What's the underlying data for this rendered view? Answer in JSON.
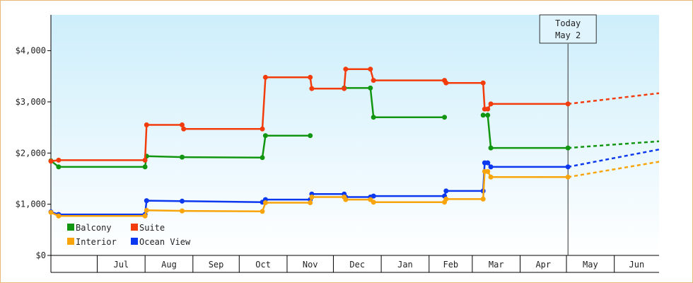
{
  "chart_data": {
    "type": "line",
    "title": "",
    "xlabel": "",
    "ylabel": "",
    "ylim": [
      0,
      4700
    ],
    "yticks": [
      0,
      1000,
      2000,
      3000,
      4000
    ],
    "ytick_labels": [
      "$0",
      "$1,000",
      "$2,000",
      "$3,000",
      "$4,000"
    ],
    "x_domain": [
      "2024-06-01",
      "2025-06-30"
    ],
    "months": [
      {
        "label": "",
        "start": "2024-06-01",
        "end": "2024-07-01"
      },
      {
        "label": "Jul",
        "start": "2024-07-01",
        "end": "2024-08-01"
      },
      {
        "label": "Aug",
        "start": "2024-08-01",
        "end": "2024-09-01"
      },
      {
        "label": "Sep",
        "start": "2024-09-01",
        "end": "2024-10-01"
      },
      {
        "label": "Oct",
        "start": "2024-10-01",
        "end": "2024-11-01"
      },
      {
        "label": "Nov",
        "start": "2024-11-01",
        "end": "2024-12-01"
      },
      {
        "label": "Dec",
        "start": "2024-12-01",
        "end": "2025-01-01"
      },
      {
        "label": "Jan",
        "start": "2025-01-01",
        "end": "2025-02-01"
      },
      {
        "label": "Feb",
        "start": "2025-02-01",
        "end": "2025-03-01"
      },
      {
        "label": "Mar",
        "start": "2025-03-01",
        "end": "2025-04-01"
      },
      {
        "label": "Apr",
        "start": "2025-04-01",
        "end": "2025-05-01"
      },
      {
        "label": "May",
        "start": "2025-05-01",
        "end": "2025-06-01"
      },
      {
        "label": "Jun",
        "start": "2025-06-01",
        "end": "2025-06-30"
      }
    ],
    "today": {
      "date": "2025-05-02",
      "line1": "Today",
      "line2": "May 2"
    },
    "legend_position": "bottom-left",
    "grid": false,
    "series": [
      {
        "name": "Balcony",
        "color": "#129612",
        "points": [
          [
            "2024-06-01",
            1850
          ],
          [
            "2024-06-06",
            1730
          ],
          [
            "2024-08-01",
            1730
          ],
          [
            "2024-08-02",
            1940
          ],
          [
            "2024-08-25",
            1920
          ],
          [
            "2024-10-16",
            1910
          ],
          [
            "2024-10-18",
            2340
          ],
          [
            "2024-11-16",
            2340
          ]
        ],
        "points2": [
          [
            "2024-12-08",
            3270
          ],
          [
            "2024-12-25",
            3270
          ],
          [
            "2024-12-27",
            2700
          ],
          [
            "2025-02-11",
            2700
          ]
        ],
        "points3": [
          [
            "2025-03-08",
            2740
          ],
          [
            "2025-03-11",
            2740
          ],
          [
            "2025-03-13",
            2100
          ],
          [
            "2025-05-02",
            2100
          ]
        ],
        "forecast": [
          [
            "2025-05-02",
            2100
          ],
          [
            "2025-06-30",
            2230
          ]
        ]
      },
      {
        "name": "Suite",
        "color": "#f23c0c",
        "points": [
          [
            "2024-06-01",
            1840
          ],
          [
            "2024-06-06",
            1860
          ],
          [
            "2024-08-01",
            1860
          ],
          [
            "2024-08-02",
            2550
          ],
          [
            "2024-08-25",
            2550
          ],
          [
            "2024-08-26",
            2470
          ],
          [
            "2024-10-16",
            2470
          ],
          [
            "2024-10-18",
            3480
          ],
          [
            "2024-11-16",
            3480
          ],
          [
            "2024-11-17",
            3260
          ],
          [
            "2024-12-08",
            3260
          ],
          [
            "2024-12-09",
            3640
          ],
          [
            "2024-12-25",
            3640
          ],
          [
            "2024-12-27",
            3420
          ],
          [
            "2025-02-11",
            3420
          ],
          [
            "2025-02-12",
            3370
          ],
          [
            "2025-03-08",
            3370
          ],
          [
            "2025-03-09",
            2860
          ],
          [
            "2025-03-11",
            2860
          ],
          [
            "2025-03-13",
            2960
          ],
          [
            "2025-05-02",
            2960
          ]
        ],
        "forecast": [
          [
            "2025-05-02",
            2960
          ],
          [
            "2025-06-30",
            3170
          ]
        ]
      },
      {
        "name": "Interior",
        "color": "#f8a40c",
        "points": [
          [
            "2024-06-01",
            840
          ],
          [
            "2024-06-06",
            770
          ],
          [
            "2024-08-01",
            770
          ],
          [
            "2024-08-02",
            880
          ],
          [
            "2024-08-25",
            870
          ],
          [
            "2024-10-16",
            860
          ],
          [
            "2024-10-18",
            1030
          ],
          [
            "2024-11-16",
            1030
          ],
          [
            "2024-11-17",
            1140
          ],
          [
            "2024-12-08",
            1140
          ],
          [
            "2024-12-09",
            1090
          ],
          [
            "2024-12-25",
            1090
          ],
          [
            "2024-12-27",
            1040
          ],
          [
            "2025-02-11",
            1040
          ],
          [
            "2025-02-12",
            1100
          ],
          [
            "2025-03-08",
            1100
          ],
          [
            "2025-03-09",
            1640
          ],
          [
            "2025-03-11",
            1640
          ],
          [
            "2025-03-13",
            1530
          ],
          [
            "2025-05-02",
            1530
          ]
        ],
        "forecast": [
          [
            "2025-05-02",
            1530
          ],
          [
            "2025-06-30",
            1830
          ]
        ]
      },
      {
        "name": "Ocean View",
        "color": "#0c38f0",
        "points": [
          [
            "2024-06-01",
            850
          ],
          [
            "2024-06-06",
            800
          ],
          [
            "2024-08-01",
            800
          ],
          [
            "2024-08-02",
            1070
          ],
          [
            "2024-08-25",
            1060
          ],
          [
            "2024-10-16",
            1040
          ],
          [
            "2024-10-18",
            1090
          ],
          [
            "2024-11-16",
            1090
          ],
          [
            "2024-11-17",
            1200
          ],
          [
            "2024-12-08",
            1200
          ],
          [
            "2024-12-09",
            1140
          ],
          [
            "2024-12-25",
            1140
          ],
          [
            "2024-12-27",
            1160
          ],
          [
            "2025-02-11",
            1160
          ],
          [
            "2025-02-12",
            1260
          ],
          [
            "2025-03-08",
            1260
          ],
          [
            "2025-03-09",
            1810
          ],
          [
            "2025-03-11",
            1810
          ],
          [
            "2025-03-13",
            1730
          ],
          [
            "2025-05-02",
            1730
          ]
        ],
        "forecast": [
          [
            "2025-05-02",
            1730
          ],
          [
            "2025-06-30",
            2070
          ]
        ]
      }
    ]
  }
}
